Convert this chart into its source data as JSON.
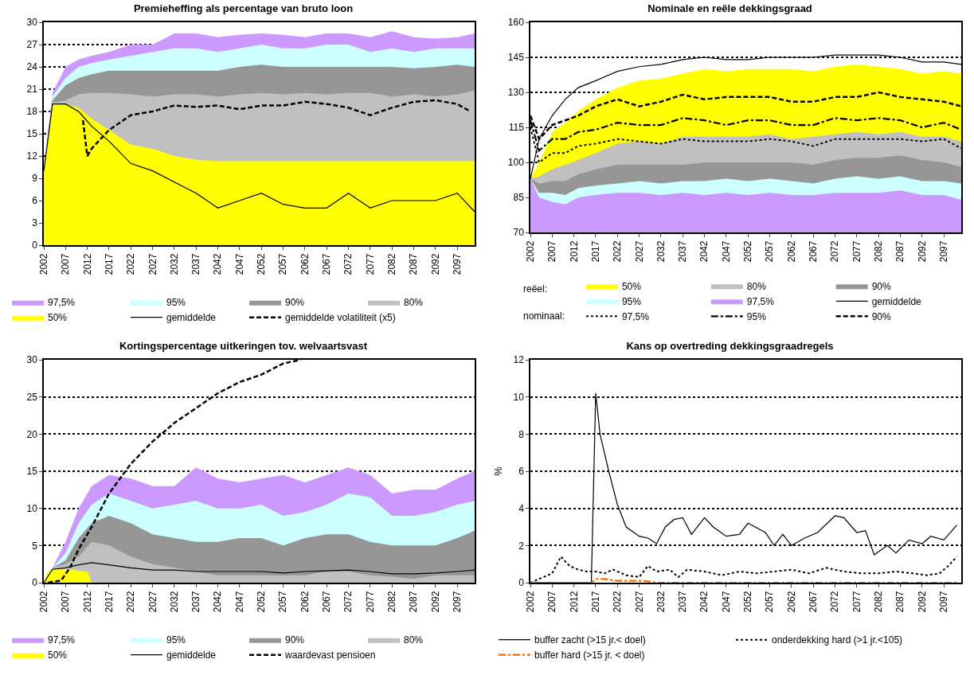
{
  "chart_data": [
    {
      "type": "area",
      "title": "Premieheffing als percentage van bruto loon",
      "x": [
        2002,
        2004,
        2007,
        2010,
        2013,
        2017,
        2022,
        2027,
        2032,
        2037,
        2042,
        2047,
        2052,
        2057,
        2062,
        2067,
        2072,
        2077,
        2082,
        2087,
        2092,
        2097,
        2101
      ],
      "xlim": [
        2002,
        2101
      ],
      "xticks": [
        2002,
        2007,
        2012,
        2017,
        2022,
        2027,
        2032,
        2037,
        2042,
        2047,
        2052,
        2057,
        2062,
        2067,
        2072,
        2077,
        2082,
        2087,
        2092,
        2097
      ],
      "ylim": [
        0,
        30
      ],
      "yticks": [
        0,
        3,
        6,
        9,
        12,
        15,
        18,
        21,
        24,
        27,
        30
      ],
      "grid": "y",
      "legend": "bottom",
      "series": [
        {
          "name": "97,5%",
          "color": "#cc99ff",
          "values": [
            10,
            20.5,
            24,
            25,
            25.5,
            26,
            27,
            27,
            28.5,
            28.5,
            28,
            28.3,
            28.5,
            28.3,
            28,
            28.5,
            28.5,
            28,
            28.8,
            28,
            27.8,
            28,
            28.5
          ]
        },
        {
          "name": "95%",
          "color": "#ccffff",
          "values": [
            10,
            20,
            22.5,
            24,
            24.5,
            25,
            25.5,
            26,
            26.5,
            26.5,
            26,
            26.5,
            27,
            26.5,
            26.5,
            27,
            27,
            26,
            26.5,
            26,
            26.5,
            26.5,
            26.5
          ]
        },
        {
          "name": "90%",
          "color": "#969696",
          "values": [
            10,
            19.5,
            21.5,
            22.5,
            23,
            23.5,
            23.5,
            23.5,
            23.5,
            23.5,
            23.5,
            24,
            24.3,
            24,
            24,
            24,
            24,
            24,
            24,
            23.8,
            24,
            24.3,
            24
          ]
        },
        {
          "name": "80%",
          "color": "#c0c0c0",
          "values": [
            10,
            19.2,
            19.5,
            20.3,
            20.5,
            20.5,
            20.3,
            20,
            20.3,
            20.3,
            20,
            20.3,
            20.5,
            20.3,
            20.5,
            20.3,
            20.5,
            20.5,
            20,
            20.3,
            20,
            20.3,
            20.8
          ]
        },
        {
          "name": "50%",
          "color": "#ffff00",
          "values": [
            10,
            19,
            19,
            18.5,
            17,
            15.5,
            13.5,
            13,
            12,
            11.5,
            11.3,
            11.3,
            11.3,
            11.3,
            11.3,
            11.3,
            11.3,
            11.3,
            11.3,
            11.3,
            11.3,
            11.3,
            11.3
          ]
        },
        {
          "name": "gemiddelde",
          "type": "line",
          "color": "#000000",
          "line_style": "solid",
          "values": [
            10,
            19,
            19,
            18,
            16,
            14,
            11,
            10,
            8.5,
            7,
            5,
            6,
            7,
            5.5,
            5,
            5,
            7,
            5,
            6,
            6,
            6,
            7,
            4.5
          ]
        },
        {
          "name": "gemiddelde volatiliteit (x5)",
          "type": "line",
          "color": "#000000",
          "line_style": "dashed",
          "x": [
            2011,
            2012,
            2013,
            2017,
            2022,
            2027,
            2032,
            2037,
            2042,
            2047,
            2052,
            2057,
            2062,
            2067,
            2072,
            2077,
            2082,
            2087,
            2092,
            2097,
            2100
          ],
          "values": [
            16.8,
            12,
            13,
            15.5,
            17.5,
            18,
            18.8,
            18.6,
            18.8,
            18.3,
            18.8,
            18.8,
            19.3,
            19,
            18.5,
            17.5,
            18.5,
            19.3,
            19.5,
            19,
            18
          ]
        }
      ]
    },
    {
      "type": "area",
      "title": "Nominale en reële dekkingsgraad",
      "x": [
        2002,
        2004,
        2007,
        2010,
        2013,
        2017,
        2022,
        2027,
        2032,
        2037,
        2042,
        2047,
        2052,
        2057,
        2062,
        2067,
        2072,
        2077,
        2082,
        2087,
        2092,
        2097,
        2101
      ],
      "xlim": [
        2002,
        2101
      ],
      "xticks": [
        2002,
        2007,
        2012,
        2017,
        2022,
        2027,
        2032,
        2037,
        2042,
        2047,
        2052,
        2057,
        2062,
        2067,
        2072,
        2077,
        2082,
        2087,
        2092,
        2097
      ],
      "ylim": [
        70,
        160
      ],
      "yticks": [
        70,
        85,
        100,
        115,
        130,
        145,
        160
      ],
      "grid": "y",
      "legend": "bottom",
      "annotations": [
        "reëel:",
        "nominaal:"
      ],
      "series": [
        {
          "name": "50%",
          "color": "#ffff00",
          "values": [
            93,
            100,
            113,
            117,
            122,
            127,
            132,
            135,
            136,
            138,
            140,
            139,
            140,
            140,
            140,
            139,
            141,
            142,
            141,
            140,
            138,
            139,
            138
          ]
        },
        {
          "name": "80%",
          "color": "#c0c0c0",
          "values": [
            93,
            94,
            97,
            99,
            101,
            104,
            108,
            109,
            108,
            111,
            111,
            111,
            111,
            112,
            110,
            111,
            112,
            113,
            112,
            113,
            111,
            111,
            109
          ]
        },
        {
          "name": "90%",
          "color": "#969696",
          "values": [
            93,
            91,
            92,
            92,
            95,
            97,
            99,
            99,
            99,
            99,
            100,
            100,
            100,
            100,
            100,
            99,
            101,
            102,
            102,
            103,
            101,
            100,
            98
          ]
        },
        {
          "name": "95%",
          "color": "#ccffff",
          "values": [
            93,
            87,
            87,
            86,
            89,
            90,
            91,
            92,
            91,
            92,
            92,
            93,
            92,
            93,
            92,
            91,
            93,
            94,
            93,
            94,
            92,
            92,
            91
          ]
        },
        {
          "name": "97,5%",
          "color": "#cc99ff",
          "values": [
            93,
            85,
            83,
            82,
            85,
            86,
            87,
            87,
            86,
            87,
            86,
            87,
            86,
            87,
            86,
            86,
            87,
            87,
            87,
            88,
            86,
            86,
            84
          ]
        },
        {
          "name": "gemiddelde",
          "type": "line",
          "color": "#000000",
          "line_style": "solid",
          "values": [
            93,
            110,
            120,
            127,
            132,
            135,
            139,
            141,
            142,
            144,
            145,
            144,
            144,
            145,
            145,
            145,
            146,
            146,
            146,
            145,
            143,
            143,
            142
          ]
        },
        {
          "name": "97,5%",
          "type": "line",
          "color": "#000000",
          "line_style": "dotted",
          "values": [
            115,
            100,
            104,
            104,
            107,
            108,
            110,
            109,
            108,
            110,
            109,
            109,
            109,
            110,
            109,
            107,
            110,
            110,
            110,
            110,
            109,
            110,
            106
          ]
        },
        {
          "name": "95%",
          "type": "line",
          "color": "#000000",
          "line_style": "dashdot",
          "values": [
            118,
            105,
            110,
            110,
            113,
            114,
            117,
            116,
            116,
            119,
            118,
            116,
            118,
            118,
            116,
            116,
            119,
            118,
            119,
            118,
            115,
            117,
            114
          ]
        },
        {
          "name": "90%",
          "type": "line",
          "color": "#000000",
          "line_style": "dashed",
          "values": [
            120,
            110,
            116,
            118,
            120,
            124,
            127,
            124,
            126,
            129,
            127,
            128,
            128,
            128,
            126,
            126,
            128,
            128,
            130,
            128,
            127,
            126,
            124
          ]
        }
      ]
    },
    {
      "type": "area",
      "title": "Kortingspercentage uitkeringen tov. welvaartsvast",
      "x": [
        2002,
        2004,
        2007,
        2010,
        2013,
        2017,
        2022,
        2027,
        2032,
        2037,
        2042,
        2047,
        2052,
        2057,
        2062,
        2067,
        2072,
        2077,
        2082,
        2087,
        2092,
        2097,
        2101
      ],
      "xlim": [
        2002,
        2101
      ],
      "xticks": [
        2002,
        2007,
        2012,
        2017,
        2022,
        2027,
        2032,
        2037,
        2042,
        2047,
        2052,
        2057,
        2062,
        2067,
        2072,
        2077,
        2082,
        2087,
        2092,
        2097
      ],
      "ylim": [
        0,
        30
      ],
      "yticks": [
        0,
        5,
        10,
        15,
        20,
        25,
        30
      ],
      "grid": "y",
      "legend": "bottom",
      "series": [
        {
          "name": "97,5%",
          "color": "#cc99ff",
          "values": [
            0,
            2,
            5.5,
            10,
            13,
            14.5,
            14,
            13,
            13,
            15.5,
            14,
            13.5,
            14,
            14.5,
            13.5,
            14.5,
            15.5,
            14.5,
            12,
            12.5,
            12.5,
            14,
            15
          ]
        },
        {
          "name": "95%",
          "color": "#ccffff",
          "values": [
            0,
            2,
            4,
            8,
            10.5,
            12,
            11,
            10,
            10.5,
            11,
            10,
            10,
            10.5,
            9,
            9.5,
            10.5,
            12,
            11.5,
            9,
            9,
            9.5,
            10.5,
            11
          ]
        },
        {
          "name": "90%",
          "color": "#969696",
          "values": [
            0,
            2,
            3,
            6,
            8,
            9,
            8,
            6.5,
            6,
            5.5,
            5.5,
            6,
            6,
            5,
            6,
            6.5,
            6.5,
            5.5,
            5,
            5,
            5,
            6,
            7
          ]
        },
        {
          "name": "80%",
          "color": "#c0c0c0",
          "values": [
            0,
            2,
            2.5,
            3.5,
            5.5,
            5,
            3.5,
            2.5,
            2,
            1.5,
            1,
            1,
            1,
            1,
            1,
            1.5,
            1.5,
            1,
            0.8,
            0.5,
            1,
            1,
            1
          ]
        },
        {
          "name": "50%",
          "color": "#ffff00",
          "x": [
            2002,
            2003,
            2005,
            2008,
            2011,
            2012,
            2013
          ],
          "values": [
            0,
            1.5,
            1.8,
            1.8,
            1.5,
            1.5,
            0
          ]
        },
        {
          "name": "gemiddelde",
          "type": "line",
          "color": "#000000",
          "line_style": "solid",
          "values": [
            0,
            1.8,
            2,
            2.4,
            2.7,
            2.4,
            2,
            1.7,
            1.7,
            1.5,
            1.5,
            1.5,
            1.5,
            1.3,
            1.5,
            1.6,
            1.7,
            1.5,
            1.2,
            1.2,
            1.3,
            1.5,
            1.7
          ]
        },
        {
          "name": "waardevast pensioen",
          "type": "line",
          "color": "#000000",
          "line_style": "dashed",
          "x": [
            2003,
            2006,
            2008,
            2010,
            2013,
            2017,
            2022,
            2027,
            2032,
            2037,
            2042,
            2047,
            2052,
            2057,
            2061
          ],
          "values": [
            0,
            0.3,
            2,
            4.5,
            7.5,
            12,
            16,
            19,
            21.5,
            23.5,
            25.5,
            27,
            28,
            29.5,
            30
          ]
        }
      ]
    },
    {
      "type": "line",
      "title": "Kans op overtreding dekkingsgraadregels",
      "ylabel": "%",
      "xlim": [
        2002,
        2101
      ],
      "xticks": [
        2002,
        2007,
        2012,
        2017,
        2022,
        2027,
        2032,
        2037,
        2042,
        2047,
        2052,
        2057,
        2062,
        2067,
        2072,
        2077,
        2082,
        2087,
        2092,
        2097
      ],
      "ylim": [
        0,
        12
      ],
      "yticks": [
        0,
        2,
        4,
        6,
        8,
        10,
        12
      ],
      "grid": "y",
      "legend": "bottom",
      "series": [
        {
          "name": "buffer zacht (>15 jr.< doel)",
          "color": "#000000",
          "line_style": "solid",
          "x": [
            2002,
            2016,
            2017,
            2018,
            2020,
            2022,
            2024,
            2027,
            2029,
            2031,
            2033,
            2035,
            2037,
            2039,
            2042,
            2044,
            2047,
            2050,
            2052,
            2056,
            2058,
            2060,
            2062,
            2065,
            2068,
            2072,
            2074,
            2077,
            2079,
            2081,
            2084,
            2086,
            2089,
            2092,
            2094,
            2097,
            2100
          ],
          "values": [
            0,
            0,
            10.2,
            8,
            6,
            4.2,
            3,
            2.5,
            2.4,
            2.1,
            3,
            3.4,
            3.5,
            2.6,
            3.5,
            3,
            2.5,
            2.6,
            3.2,
            2.7,
            2,
            2.6,
            2,
            2.4,
            2.7,
            3.6,
            3.5,
            2.7,
            2.8,
            1.5,
            2,
            1.6,
            2.3,
            2.1,
            2.5,
            2.3,
            3.1
          ]
        },
        {
          "name": "onderdekking hard (>1 jr.<105)",
          "color": "#000000",
          "line_style": "dotted",
          "x": [
            2002,
            2005,
            2007,
            2009,
            2011,
            2013,
            2015,
            2017,
            2019,
            2021,
            2024,
            2027,
            2029,
            2031,
            2034,
            2036,
            2038,
            2042,
            2046,
            2050,
            2054,
            2058,
            2062,
            2066,
            2070,
            2074,
            2078,
            2082,
            2086,
            2090,
            2093,
            2096,
            2098,
            2100
          ],
          "values": [
            0,
            0.3,
            0.5,
            1.4,
            0.9,
            0.7,
            0.6,
            0.6,
            0.5,
            0.7,
            0.4,
            0.3,
            0.9,
            0.6,
            0.7,
            0.3,
            0.7,
            0.6,
            0.4,
            0.6,
            0.5,
            0.6,
            0.7,
            0.5,
            0.8,
            0.6,
            0.5,
            0.5,
            0.6,
            0.5,
            0.4,
            0.5,
            0.9,
            1.4
          ]
        },
        {
          "name": "buffer hard (>15 jr. < doel)",
          "color": "#ff6600",
          "line_style": "dashdot",
          "x": [
            2002,
            2016,
            2017,
            2019,
            2022,
            2025,
            2028,
            2031,
            2100
          ],
          "values": [
            0,
            0,
            0.2,
            0.2,
            0.1,
            0.1,
            0.1,
            0,
            0
          ]
        }
      ]
    }
  ]
}
